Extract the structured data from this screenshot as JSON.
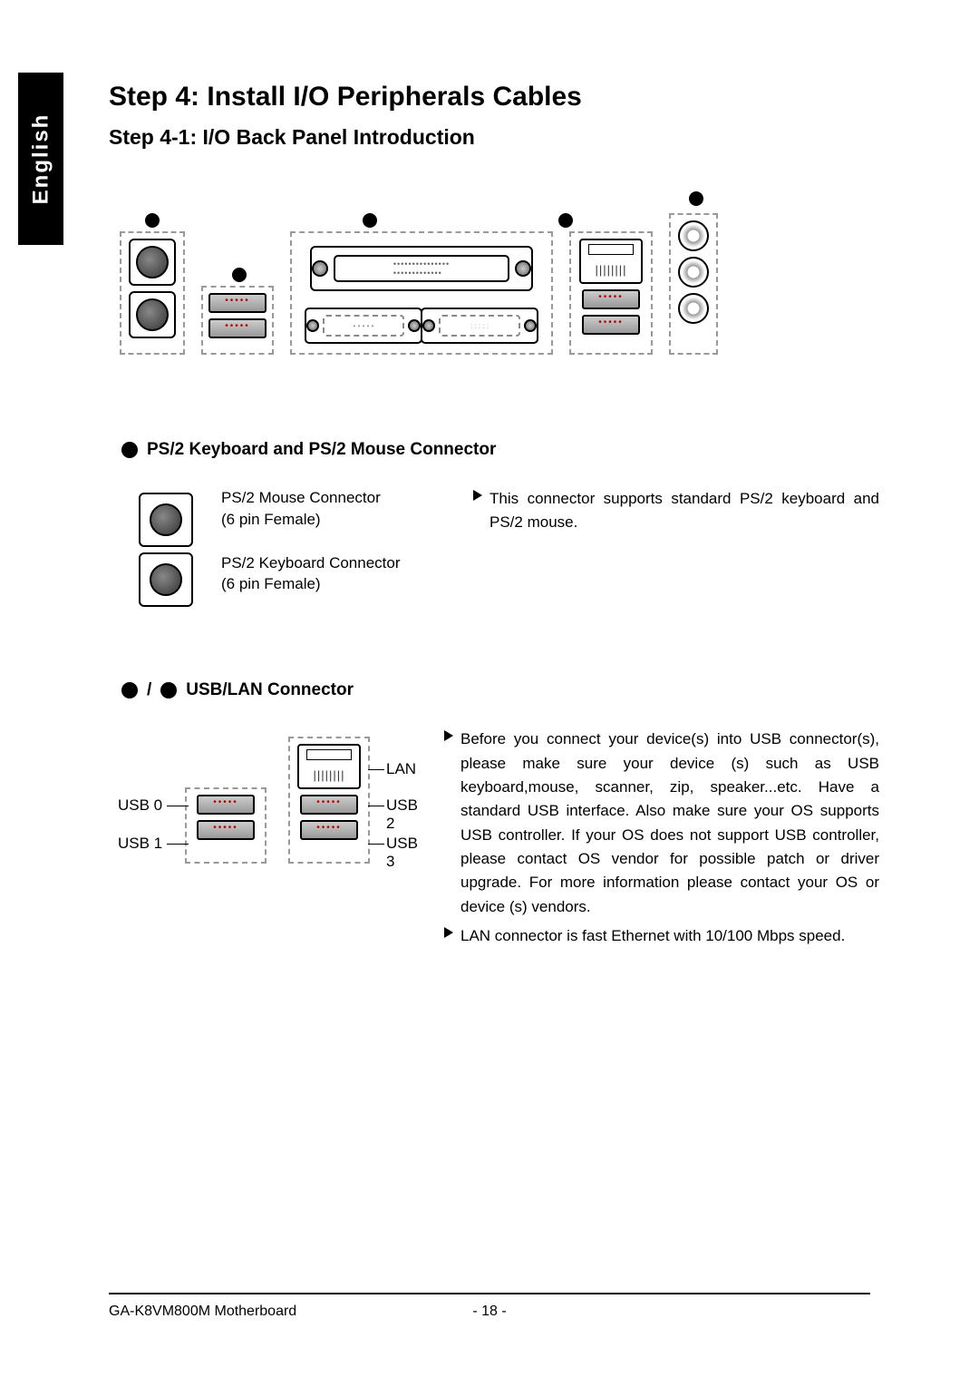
{
  "language_tab": "English",
  "main_title": "Step 4: Install I/O  Peripherals Cables",
  "sub_title": "Step 4-1: I/O Back Panel Introduction",
  "section1": {
    "header": "PS/2 Keyboard and PS/2 Mouse Connector",
    "mouse_label": "PS/2 Mouse Connector",
    "mouse_sub": "(6 pin Female)",
    "keyboard_label": "PS/2 Keyboard Connector",
    "keyboard_sub": "(6 pin Female)",
    "bullet": "This connector supports standard PS/2 keyboard and PS/2 mouse."
  },
  "section2": {
    "header": " USB/LAN Connector",
    "labels": {
      "lan": "LAN",
      "usb0": "USB 0",
      "usb1": "USB 1",
      "usb2": "USB 2",
      "usb3": "USB 3"
    },
    "bullet1": "Before you connect your device(s) into USB connector(s), please make sure your device (s) such as USB keyboard,mouse, scanner, zip, speaker...etc. Have a standard USB interface. Also make sure your OS supports USB controller. If your OS does not support USB controller, please contact OS vendor for possible patch or driver upgrade. For more information please contact your OS or device (s) vendors.",
    "bullet2": "LAN connector is fast Ethernet with 10/100 Mbps speed."
  },
  "footer": {
    "product": "GA-K8VM800M Motherboard",
    "page": "- 18 -"
  }
}
